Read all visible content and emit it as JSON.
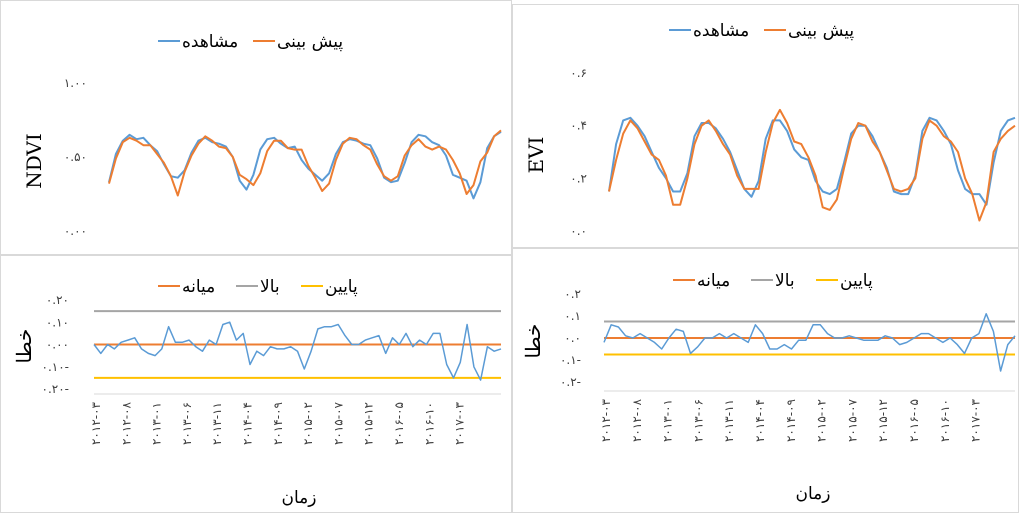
{
  "colors": {
    "observed": "#5b9bd5",
    "predicted": "#ed7d31",
    "median": "#ed7d31",
    "upper": "#a5a5a5",
    "lower": "#ffc000",
    "axis": "#d9d9d9"
  },
  "x_axis": {
    "label": "زمان",
    "ticks": [
      "۲۰۱۲-۰۳",
      "۲۰۱۲-۰۸",
      "۲۰۱۳-۰۱",
      "۲۰۱۳-۰۶",
      "۲۰۱۳-۱۱",
      "۲۰۱۴-۰۴",
      "۲۰۱۴-۰۹",
      "۲۰۱۵-۰۲",
      "۲۰۱۵-۰۷",
      "۲۰۱۵-۱۲",
      "۲۰۱۶-۰۵",
      "۲۰۱۶-۱۰",
      "۲۰۱۷-۰۳"
    ]
  },
  "chart_data": [
    {
      "type": "line",
      "ylabel": "NDVI",
      "ylim": [
        0,
        1
      ],
      "yticks": [
        "۰.۰۰",
        "۰.۵۰",
        "۱.۰۰"
      ],
      "ytick_values": [
        0,
        0.5,
        1
      ],
      "legend": {
        "placement": "top",
        "entries": [
          "مشاهده",
          "پیش بینی"
        ]
      },
      "series": [
        {
          "name": "مشاهده",
          "values": [
            0.33,
            0.52,
            0.61,
            0.65,
            0.62,
            0.63,
            0.58,
            0.54,
            0.45,
            0.37,
            0.36,
            0.41,
            0.53,
            0.61,
            0.63,
            0.6,
            0.59,
            0.57,
            0.5,
            0.34,
            0.28,
            0.38,
            0.55,
            0.62,
            0.63,
            0.59,
            0.56,
            0.57,
            0.48,
            0.42,
            0.38,
            0.34,
            0.39,
            0.52,
            0.6,
            0.62,
            0.61,
            0.59,
            0.58,
            0.49,
            0.36,
            0.33,
            0.34,
            0.46,
            0.6,
            0.65,
            0.64,
            0.6,
            0.58,
            0.51,
            0.38,
            0.36,
            0.34,
            0.22,
            0.33,
            0.56,
            0.64,
            0.67
          ]
        },
        {
          "name": "پیش بینی",
          "values": [
            0.32,
            0.49,
            0.6,
            0.63,
            0.61,
            0.58,
            0.58,
            0.52,
            0.46,
            0.37,
            0.24,
            0.4,
            0.51,
            0.59,
            0.64,
            0.61,
            0.57,
            0.56,
            0.5,
            0.38,
            0.35,
            0.31,
            0.39,
            0.54,
            0.61,
            0.61,
            0.56,
            0.55,
            0.55,
            0.44,
            0.36,
            0.27,
            0.32,
            0.48,
            0.59,
            0.63,
            0.62,
            0.58,
            0.55,
            0.45,
            0.37,
            0.34,
            0.37,
            0.51,
            0.58,
            0.62,
            0.57,
            0.55,
            0.57,
            0.55,
            0.48,
            0.39,
            0.25,
            0.31,
            0.47,
            0.53,
            0.64,
            0.68
          ]
        }
      ]
    },
    {
      "type": "line",
      "ylabel": "EVI",
      "ylim": [
        0,
        0.6
      ],
      "yticks": [
        "۰.۰",
        "۰.۲",
        "۰.۴",
        "۰.۶"
      ],
      "ytick_values": [
        0,
        0.2,
        0.4,
        0.6
      ],
      "legend": {
        "placement": "top",
        "entries": [
          "مشاهده",
          "پیش بینی"
        ]
      },
      "series": [
        {
          "name": "مشاهده",
          "values": [
            0.15,
            0.33,
            0.42,
            0.43,
            0.4,
            0.36,
            0.3,
            0.24,
            0.2,
            0.15,
            0.15,
            0.22,
            0.36,
            0.41,
            0.41,
            0.39,
            0.35,
            0.3,
            0.23,
            0.16,
            0.13,
            0.19,
            0.35,
            0.42,
            0.42,
            0.38,
            0.31,
            0.28,
            0.27,
            0.19,
            0.15,
            0.14,
            0.16,
            0.26,
            0.37,
            0.4,
            0.4,
            0.36,
            0.3,
            0.24,
            0.15,
            0.14,
            0.14,
            0.21,
            0.38,
            0.43,
            0.42,
            0.38,
            0.33,
            0.23,
            0.16,
            0.14,
            0.14,
            0.1,
            0.26,
            0.38,
            0.42,
            0.43
          ]
        },
        {
          "name": "پیش بینی",
          "values": [
            0.15,
            0.27,
            0.37,
            0.42,
            0.39,
            0.34,
            0.29,
            0.27,
            0.21,
            0.1,
            0.1,
            0.2,
            0.33,
            0.4,
            0.42,
            0.38,
            0.33,
            0.29,
            0.21,
            0.16,
            0.16,
            0.16,
            0.3,
            0.41,
            0.46,
            0.41,
            0.34,
            0.33,
            0.28,
            0.21,
            0.09,
            0.08,
            0.12,
            0.24,
            0.35,
            0.41,
            0.4,
            0.34,
            0.3,
            0.23,
            0.16,
            0.15,
            0.16,
            0.2,
            0.35,
            0.42,
            0.4,
            0.36,
            0.34,
            0.3,
            0.2,
            0.14,
            0.04,
            0.11,
            0.3,
            0.35,
            0.38,
            0.4
          ]
        }
      ]
    },
    {
      "type": "line",
      "ylabel": "خطا",
      "ylim": [
        -0.2,
        0.2
      ],
      "yticks": [
        "۰.۲۰-",
        "۰.۱۰-",
        "۰.۰۰",
        "۰.۱۰",
        "۰.۲۰"
      ],
      "ytick_values": [
        -0.2,
        -0.1,
        0,
        0.1,
        0.2
      ],
      "legend": {
        "placement": "top",
        "entries": [
          "میانه",
          "بالا",
          "پایین"
        ]
      },
      "reference_lines": {
        "median": 0.0,
        "upper": 0.15,
        "lower": -0.15
      },
      "series": [
        {
          "name": "residual",
          "values": [
            0.0,
            -0.04,
            0.0,
            -0.02,
            0.01,
            0.02,
            0.03,
            -0.02,
            -0.04,
            -0.05,
            -0.02,
            0.08,
            0.01,
            0.01,
            0.02,
            -0.01,
            -0.03,
            0.02,
            0.0,
            0.09,
            0.1,
            0.02,
            0.05,
            -0.09,
            -0.03,
            -0.05,
            -0.01,
            -0.02,
            -0.02,
            -0.01,
            -0.03,
            -0.11,
            -0.03,
            0.07,
            0.08,
            0.08,
            0.09,
            0.04,
            0.0,
            0.0,
            0.02,
            0.03,
            0.04,
            -0.04,
            0.03,
            0.0,
            0.05,
            -0.01,
            0.02,
            0.0,
            0.05,
            0.05,
            -0.09,
            -0.15,
            -0.08,
            0.09,
            -0.1,
            -0.16,
            -0.01,
            -0.03,
            -0.02
          ]
        }
      ]
    },
    {
      "type": "line",
      "ylabel": "خطا",
      "ylim": [
        -0.2,
        0.2
      ],
      "yticks": [
        "۰.۲-",
        "۰.۱-",
        "۰.۰",
        "۰.۱",
        "۰.۲"
      ],
      "ytick_values": [
        -0.2,
        -0.1,
        0,
        0.1,
        0.2
      ],
      "legend": {
        "placement": "top",
        "entries": [
          "میانه",
          "بالا",
          "پایین"
        ]
      },
      "reference_lines": {
        "median": 0.0,
        "upper": 0.075,
        "lower": -0.075
      },
      "series": [
        {
          "name": "residual",
          "values": [
            -0.02,
            0.06,
            0.05,
            0.01,
            0.0,
            0.02,
            0.0,
            -0.02,
            -0.05,
            0.0,
            0.04,
            0.03,
            -0.07,
            -0.04,
            0.0,
            0.0,
            0.02,
            0.0,
            0.02,
            0.0,
            -0.02,
            0.06,
            0.02,
            -0.05,
            -0.05,
            -0.03,
            -0.05,
            -0.01,
            -0.01,
            0.06,
            0.06,
            0.02,
            0.0,
            0.0,
            0.01,
            0.0,
            -0.01,
            -0.01,
            -0.01,
            0.01,
            0.0,
            -0.03,
            -0.02,
            0.0,
            0.02,
            0.02,
            0.0,
            -0.02,
            0.0,
            -0.03,
            -0.07,
            0.0,
            0.02,
            0.11,
            0.03,
            -0.15,
            -0.03,
            0.01
          ]
        }
      ]
    }
  ]
}
